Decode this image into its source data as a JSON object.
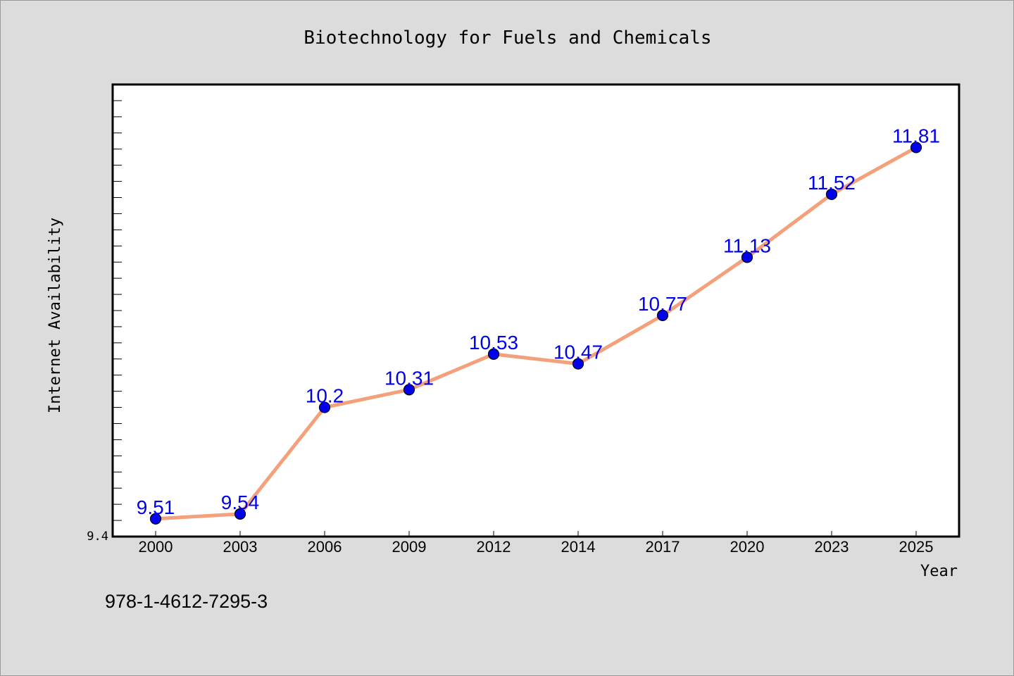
{
  "chart_data": {
    "type": "line",
    "title": "Biotechnology for Fuels and Chemicals",
    "xlabel": "Year",
    "ylabel": "Internet Availability",
    "categories": [
      "2000",
      "2003",
      "2006",
      "2009",
      "2012",
      "2014",
      "2017",
      "2020",
      "2023",
      "2025"
    ],
    "series": [
      {
        "values": [
          9.51,
          9.54,
          10.2,
          10.31,
          10.53,
          10.47,
          10.77,
          11.13,
          11.52,
          11.81
        ],
        "labels": [
          "9.51",
          "9.54",
          "10.2",
          "10.31",
          "10.53",
          "10.47",
          "10.77",
          "11.13",
          "11.52",
          "11.81"
        ]
      }
    ],
    "ylim": [
      9.4,
      12.2
    ],
    "y_tick_labels": [
      "9.4"
    ],
    "grid": false,
    "footnote": "978-1-4612-7295-3",
    "colors": {
      "line": "#f4a07a",
      "marker": "#0000ee",
      "label": "#0000ee",
      "background": "#dcdcdc",
      "plot_background": "#ffffff"
    }
  }
}
